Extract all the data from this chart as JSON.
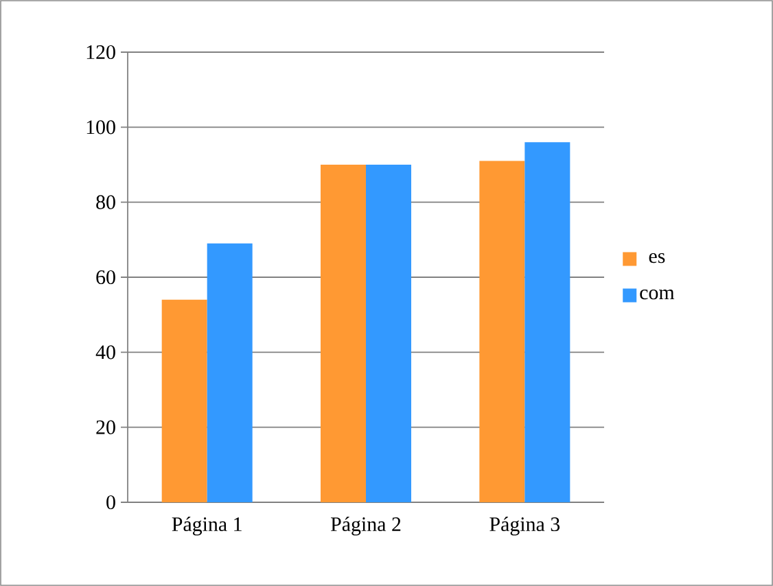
{
  "chart_data": {
    "type": "bar",
    "categories": [
      "Página 1",
      "Página 2",
      "Página 3"
    ],
    "series": [
      {
        "name": "es",
        "color": "#ff9933",
        "values": [
          54,
          90,
          91
        ]
      },
      {
        "name": "com",
        "color": "#3399ff",
        "values": [
          69,
          90,
          96
        ]
      }
    ],
    "ylim": [
      0,
      120
    ],
    "yticks": [
      0,
      20,
      40,
      60,
      80,
      100,
      120
    ],
    "grid": "y",
    "legend": "right"
  }
}
